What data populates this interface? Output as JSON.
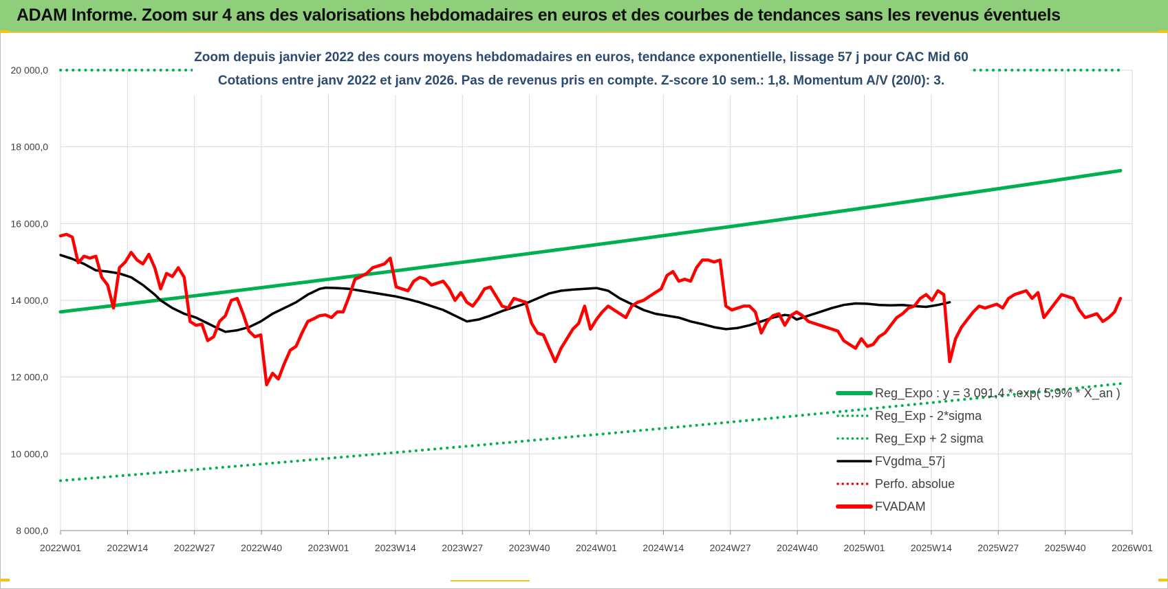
{
  "header": {
    "title": "ADAM Informe. Zoom sur 4 ans des valorisations hebdomadaires en euros et des courbes de tendances sans les revenus éventuels"
  },
  "colors": {
    "banner": "#8fce7a",
    "trend": "#00b050",
    "bands": "#00b050",
    "fvgdma": "#000000",
    "perfo": "#ff0000",
    "fvadam": "#ff0000"
  },
  "chart_data": {
    "type": "line",
    "subtitle_line1": "Zoom depuis janvier 2022 des cours moyens hebdomadaires en euros, tendance exponentielle, lissage 57 j pour CAC Mid 60",
    "subtitle_line2": "Cotations entre janv 2022 et janv 2026. Pas de revenus pris en compte. Z-score 10 sem.: 1,8. Momentum A/V (20/0): 3.",
    "xlabel": "",
    "ylabel": "",
    "ylim": [
      8000,
      20000
    ],
    "yticks": [
      8000,
      10000,
      12000,
      14000,
      16000,
      18000,
      20000
    ],
    "ytick_labels": [
      "8 000,0",
      "10 000,0",
      "12 000,0",
      "14 000,0",
      "16 000,0",
      "18 000,0",
      "20 000,0"
    ],
    "x_range": [
      "2022W01",
      "2026W01"
    ],
    "x_tick_labels": [
      "2022W01",
      "2022W14",
      "2022W27",
      "2022W40",
      "2023W01",
      "2023W14",
      "2023W27",
      "2023W40",
      "2024W01",
      "2024W14",
      "2024W27",
      "2024W40",
      "2025W01",
      "2025W14",
      "2025W27",
      "2025W40",
      "2026W01"
    ],
    "grid": true,
    "legend_position": "bottom-right",
    "legend": [
      {
        "name": "Reg_Expo : y = 3 091,4 *.exp( 5,9% * X_an )",
        "style": "solid-thick",
        "color": "#00b050"
      },
      {
        "name": "Reg_Exp - 2*sigma",
        "style": "dotted",
        "color": "#00b050"
      },
      {
        "name": "Reg_Exp + 2 sigma",
        "style": "dotted",
        "color": "#00b050"
      },
      {
        "name": "FVgdma_57j",
        "style": "solid",
        "color": "#000000"
      },
      {
        "name": "Perfo. absolue",
        "style": "dotted",
        "color": "#ff0000"
      },
      {
        "name": "FVADAM",
        "style": "solid-thick",
        "color": "#ff0000"
      }
    ],
    "series": [
      {
        "name": "Reg_Expo : y = 3 091,4 *.exp( 5,9% * X_an )",
        "start": 13700,
        "end": 17380
      },
      {
        "name": "Reg_Exp - 2*sigma",
        "start": 9300,
        "end": 11830
      },
      {
        "name": "Reg_Exp + 2 sigma",
        "start": 20000,
        "end": 20000
      },
      {
        "name": "FVgdma_57j",
        "values": [
          [
            0,
            15180
          ],
          [
            4,
            15080
          ],
          [
            8,
            14950
          ],
          [
            12,
            14780
          ],
          [
            16,
            14750
          ],
          [
            20,
            14700
          ],
          [
            24,
            14600
          ],
          [
            28,
            14400
          ],
          [
            32,
            14150
          ],
          [
            34,
            14000
          ],
          [
            38,
            13800
          ],
          [
            42,
            13650
          ],
          [
            46,
            13550
          ],
          [
            50,
            13400
          ],
          [
            54,
            13250
          ],
          [
            56,
            13180
          ],
          [
            58,
            13200
          ],
          [
            60,
            13220
          ],
          [
            64,
            13300
          ],
          [
            68,
            13450
          ],
          [
            72,
            13650
          ],
          [
            76,
            13800
          ],
          [
            80,
            13950
          ],
          [
            84,
            14150
          ],
          [
            88,
            14300
          ],
          [
            90,
            14330
          ],
          [
            94,
            14320
          ],
          [
            98,
            14300
          ],
          [
            102,
            14250
          ],
          [
            106,
            14200
          ],
          [
            110,
            14150
          ],
          [
            114,
            14100
          ],
          [
            118,
            14030
          ],
          [
            122,
            13950
          ],
          [
            126,
            13850
          ],
          [
            130,
            13750
          ],
          [
            134,
            13600
          ],
          [
            138,
            13450
          ],
          [
            142,
            13500
          ],
          [
            146,
            13600
          ],
          [
            150,
            13720
          ],
          [
            154,
            13820
          ],
          [
            158,
            13920
          ],
          [
            162,
            14050
          ],
          [
            166,
            14180
          ],
          [
            170,
            14250
          ],
          [
            174,
            14280
          ],
          [
            178,
            14300
          ],
          [
            182,
            14320
          ],
          [
            186,
            14250
          ],
          [
            190,
            14050
          ],
          [
            194,
            13900
          ],
          [
            198,
            13750
          ],
          [
            202,
            13650
          ],
          [
            206,
            13600
          ],
          [
            210,
            13550
          ],
          [
            214,
            13450
          ],
          [
            218,
            13380
          ],
          [
            222,
            13300
          ],
          [
            226,
            13250
          ],
          [
            230,
            13280
          ],
          [
            234,
            13350
          ],
          [
            238,
            13450
          ],
          [
            242,
            13550
          ],
          [
            246,
            13620
          ],
          [
            248,
            13600
          ],
          [
            250,
            13500
          ],
          [
            254,
            13600
          ],
          [
            258,
            13700
          ],
          [
            262,
            13800
          ],
          [
            266,
            13880
          ],
          [
            270,
            13920
          ],
          [
            274,
            13910
          ],
          [
            278,
            13880
          ],
          [
            282,
            13870
          ],
          [
            286,
            13880
          ],
          [
            290,
            13850
          ],
          [
            294,
            13830
          ],
          [
            298,
            13880
          ],
          [
            302,
            13950
          ]
        ]
      },
      {
        "name": "Perfo. absolue",
        "values": []
      },
      {
        "name": "FVADAM",
        "values": [
          [
            0,
            15680
          ],
          [
            2,
            15720
          ],
          [
            4,
            15650
          ],
          [
            6,
            14980
          ],
          [
            8,
            15150
          ],
          [
            10,
            15100
          ],
          [
            12,
            15150
          ],
          [
            14,
            14600
          ],
          [
            16,
            14400
          ],
          [
            18,
            13800
          ],
          [
            20,
            14850
          ],
          [
            22,
            15000
          ],
          [
            24,
            15250
          ],
          [
            26,
            15050
          ],
          [
            28,
            14950
          ],
          [
            30,
            15200
          ],
          [
            32,
            14850
          ],
          [
            34,
            14300
          ],
          [
            36,
            14700
          ],
          [
            38,
            14620
          ],
          [
            40,
            14850
          ],
          [
            42,
            14600
          ],
          [
            44,
            13450
          ],
          [
            46,
            13350
          ],
          [
            48,
            13380
          ],
          [
            50,
            12950
          ],
          [
            52,
            13050
          ],
          [
            54,
            13450
          ],
          [
            56,
            13600
          ],
          [
            58,
            14000
          ],
          [
            60,
            14050
          ],
          [
            62,
            13650
          ],
          [
            64,
            13200
          ],
          [
            66,
            13050
          ],
          [
            68,
            13100
          ],
          [
            70,
            11800
          ],
          [
            72,
            12100
          ],
          [
            74,
            11950
          ],
          [
            76,
            12350
          ],
          [
            78,
            12700
          ],
          [
            80,
            12800
          ],
          [
            82,
            13150
          ],
          [
            84,
            13450
          ],
          [
            86,
            13520
          ],
          [
            88,
            13600
          ],
          [
            90,
            13620
          ],
          [
            92,
            13550
          ],
          [
            94,
            13700
          ],
          [
            96,
            13700
          ],
          [
            98,
            14100
          ],
          [
            100,
            14550
          ],
          [
            102,
            14620
          ],
          [
            104,
            14700
          ],
          [
            106,
            14850
          ],
          [
            108,
            14900
          ],
          [
            110,
            14950
          ],
          [
            112,
            15100
          ],
          [
            114,
            14350
          ],
          [
            116,
            14300
          ],
          [
            118,
            14250
          ],
          [
            120,
            14500
          ],
          [
            122,
            14600
          ],
          [
            124,
            14550
          ],
          [
            126,
            14400
          ],
          [
            128,
            14450
          ],
          [
            130,
            14500
          ],
          [
            132,
            14300
          ],
          [
            134,
            14000
          ],
          [
            136,
            14200
          ],
          [
            138,
            13950
          ],
          [
            140,
            13850
          ],
          [
            142,
            14050
          ],
          [
            144,
            14300
          ],
          [
            146,
            14350
          ],
          [
            148,
            14100
          ],
          [
            150,
            13850
          ],
          [
            152,
            13800
          ],
          [
            154,
            14050
          ],
          [
            156,
            14000
          ],
          [
            158,
            13950
          ],
          [
            160,
            13400
          ],
          [
            162,
            13150
          ],
          [
            164,
            13100
          ],
          [
            166,
            12750
          ],
          [
            168,
            12400
          ],
          [
            170,
            12750
          ],
          [
            172,
            13000
          ],
          [
            174,
            13250
          ],
          [
            176,
            13400
          ],
          [
            178,
            13850
          ],
          [
            180,
            13250
          ],
          [
            182,
            13500
          ],
          [
            184,
            13700
          ],
          [
            186,
            13850
          ],
          [
            188,
            13750
          ],
          [
            190,
            13650
          ],
          [
            192,
            13550
          ],
          [
            194,
            13850
          ],
          [
            196,
            13950
          ],
          [
            198,
            14000
          ],
          [
            200,
            14100
          ],
          [
            202,
            14200
          ],
          [
            204,
            14300
          ],
          [
            206,
            14650
          ],
          [
            208,
            14750
          ],
          [
            210,
            14500
          ],
          [
            212,
            14550
          ],
          [
            214,
            14500
          ],
          [
            216,
            14850
          ],
          [
            218,
            15050
          ],
          [
            220,
            15050
          ],
          [
            222,
            15000
          ],
          [
            224,
            15050
          ],
          [
            226,
            13850
          ],
          [
            228,
            13750
          ],
          [
            230,
            13800
          ],
          [
            232,
            13850
          ],
          [
            234,
            13850
          ],
          [
            236,
            13700
          ],
          [
            238,
            13150
          ],
          [
            240,
            13450
          ],
          [
            242,
            13600
          ],
          [
            244,
            13650
          ],
          [
            246,
            13350
          ],
          [
            248,
            13600
          ],
          [
            250,
            13700
          ],
          [
            252,
            13600
          ],
          [
            254,
            13450
          ],
          [
            256,
            13400
          ],
          [
            258,
            13350
          ],
          [
            260,
            13300
          ],
          [
            262,
            13250
          ],
          [
            264,
            13200
          ],
          [
            266,
            12950
          ],
          [
            268,
            12850
          ],
          [
            270,
            12750
          ],
          [
            272,
            13000
          ],
          [
            274,
            12800
          ],
          [
            276,
            12850
          ],
          [
            278,
            13050
          ],
          [
            280,
            13150
          ],
          [
            282,
            13350
          ],
          [
            284,
            13550
          ],
          [
            286,
            13650
          ],
          [
            288,
            13800
          ],
          [
            290,
            13850
          ],
          [
            292,
            14050
          ],
          [
            294,
            14150
          ],
          [
            296,
            14000
          ],
          [
            298,
            14250
          ],
          [
            300,
            14150
          ],
          [
            302,
            12400
          ],
          [
            304,
            13000
          ],
          [
            306,
            13300
          ],
          [
            308,
            13500
          ],
          [
            310,
            13700
          ],
          [
            312,
            13850
          ],
          [
            314,
            13800
          ],
          [
            316,
            13850
          ],
          [
            318,
            13900
          ],
          [
            320,
            13800
          ],
          [
            322,
            14050
          ],
          [
            324,
            14150
          ],
          [
            326,
            14200
          ],
          [
            328,
            14250
          ],
          [
            330,
            14050
          ],
          [
            332,
            14200
          ],
          [
            334,
            13550
          ],
          [
            336,
            13750
          ],
          [
            338,
            13950
          ],
          [
            340,
            14150
          ],
          [
            342,
            14100
          ],
          [
            344,
            14050
          ],
          [
            346,
            13750
          ],
          [
            348,
            13550
          ],
          [
            350,
            13600
          ],
          [
            352,
            13650
          ],
          [
            354,
            13450
          ],
          [
            356,
            13550
          ],
          [
            358,
            13700
          ],
          [
            360,
            14050
          ]
        ]
      }
    ]
  }
}
